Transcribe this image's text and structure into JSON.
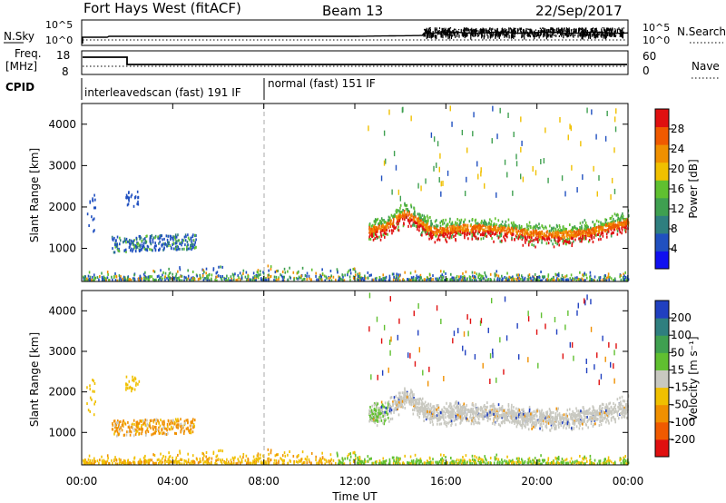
{
  "header": {
    "station": "Fort Hays West (fitACF)",
    "beam": "Beam 13",
    "date": "22/Sep/2017"
  },
  "params": {
    "nsky_label": "N.Sky",
    "nsky_ticks": [
      "10^5",
      "10^0"
    ],
    "nsearch_label": "N.Search",
    "freq_label_1": "Freq.",
    "freq_label_2": "[MHz]",
    "freq_ticks": [
      "18",
      "8"
    ],
    "nave_label": "Nave",
    "nave_ticks": [
      "60",
      "0"
    ],
    "cpid_label": "CPID",
    "cpid_segments": [
      "interleavedscan (fast) 191 IF",
      "normal (fast) 151 IF"
    ]
  },
  "colors": {
    "power_scale": [
      "#1010f0",
      "#2050c0",
      "#2f7f7f",
      "#3fa050",
      "#60c030",
      "#f0c000",
      "#f09000",
      "#f05a00",
      "#e01010"
    ],
    "velocity_scale": [
      "#e01010",
      "#f05a00",
      "#f09000",
      "#f0c000",
      "#c8c8c0",
      "#60c030",
      "#3fa050",
      "#2f7f7f",
      "#2040c0"
    ],
    "gray_ground": "#c8c8c0"
  },
  "chart_data": [
    {
      "type": "heatmap",
      "panel": "power",
      "ylabel": "Slant Range [km]",
      "xlabel": "",
      "x_ticks": [
        "00:00",
        "04:00",
        "08:00",
        "12:00",
        "16:00",
        "20:00",
        "00:00"
      ],
      "y_ticks": [
        "1000",
        "2000",
        "3000",
        "4000"
      ],
      "ylim": [
        200,
        4500
      ],
      "colorbar": {
        "label": "Power [dB]",
        "ticks": [
          "4",
          "8",
          "12",
          "16",
          "20",
          "24",
          "28"
        ],
        "range": [
          0,
          30
        ]
      },
      "features": [
        {
          "name": "early-patch",
          "x_hours": [
            1.3,
            5.0
          ],
          "range_km": [
            850,
            1350
          ],
          "power_db": 9
        },
        {
          "name": "upper-patch",
          "x_hours": [
            1.8,
            2.5
          ],
          "range_km": [
            2000,
            2400
          ],
          "power_db": 8
        },
        {
          "name": "main-band",
          "x_hours": [
            12.6,
            24.0
          ],
          "range_km_center": 1550,
          "power_db": 25
        },
        {
          "name": "near-range-ground",
          "x_hours": [
            0.0,
            24.0
          ],
          "range_km": [
            200,
            450
          ],
          "power_db": 12
        }
      ]
    },
    {
      "type": "heatmap",
      "panel": "velocity",
      "ylabel": "Slant Range [km]",
      "xlabel": "Time UT",
      "x_ticks": [
        "00:00",
        "04:00",
        "08:00",
        "12:00",
        "16:00",
        "20:00",
        "00:00"
      ],
      "y_ticks": [
        "1000",
        "2000",
        "3000",
        "4000"
      ],
      "ylim": [
        200,
        4500
      ],
      "colorbar": {
        "label": "Velocity [m s⁻¹]",
        "ticks": [
          "200",
          "100",
          "50",
          "15",
          "-15",
          "-50",
          "-100",
          "-200"
        ],
        "range": [
          -250,
          250
        ]
      },
      "features": [
        {
          "name": "early-patch",
          "x_hours": [
            1.3,
            5.0
          ],
          "range_km": [
            850,
            1350
          ],
          "velocity": -50
        },
        {
          "name": "main-band",
          "x_hours": [
            12.6,
            24.0
          ],
          "range_km_center": 1550,
          "velocity": 0
        },
        {
          "name": "near-range",
          "x_hours": [
            0.0,
            24.0
          ],
          "range_km": [
            200,
            450
          ],
          "velocity": -40
        }
      ]
    }
  ]
}
